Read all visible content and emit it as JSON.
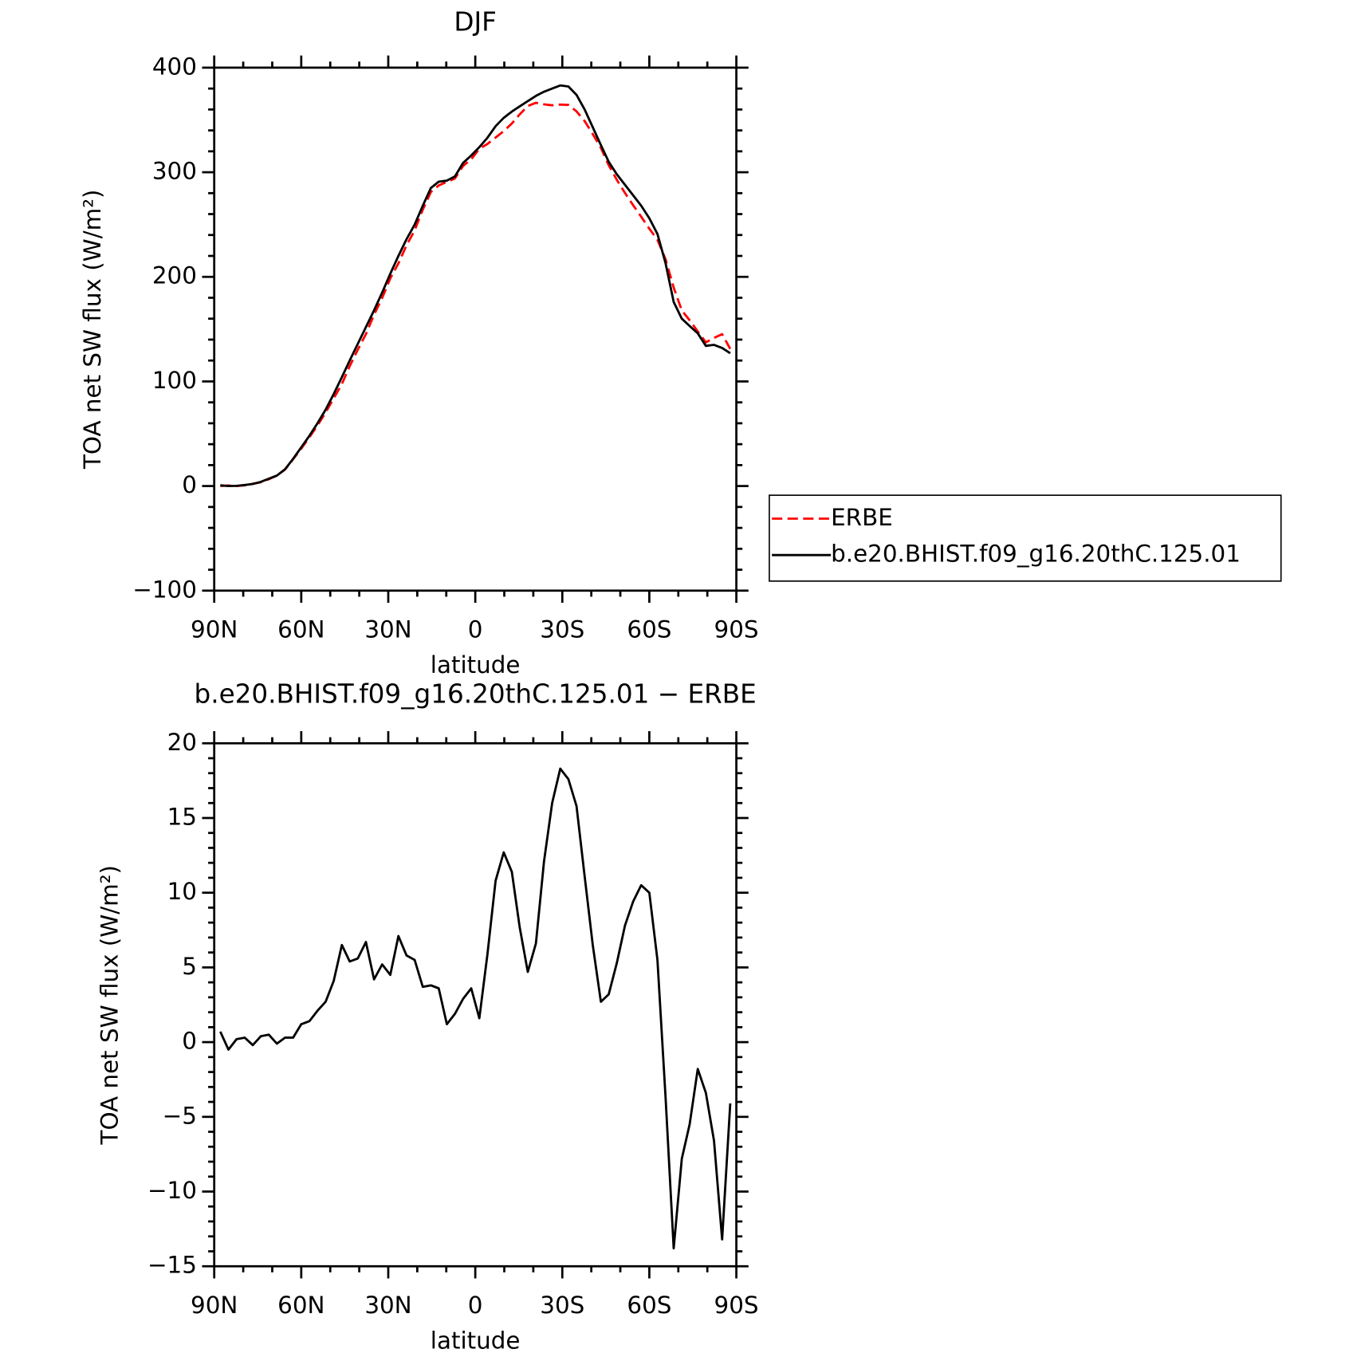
{
  "chart_data": [
    {
      "type": "line",
      "title": "DJF",
      "xlabel": "latitude",
      "ylabel": "TOA net SW flux (W/m²)",
      "x": [
        87.9,
        85.1,
        82.3,
        79.5,
        76.7,
        73.9,
        71.2,
        68.4,
        65.6,
        62.8,
        60.0,
        57.2,
        54.4,
        51.6,
        48.8,
        46.0,
        43.3,
        40.5,
        37.7,
        34.9,
        32.1,
        29.3,
        26.5,
        23.7,
        20.9,
        18.1,
        15.3,
        12.6,
        9.8,
        7.0,
        4.2,
        1.4,
        -1.4,
        -4.2,
        -7.0,
        -9.8,
        -12.6,
        -15.3,
        -18.1,
        -20.9,
        -23.7,
        -26.5,
        -29.3,
        -32.1,
        -34.9,
        -37.7,
        -40.5,
        -43.3,
        -46.0,
        -48.8,
        -51.6,
        -54.4,
        -57.2,
        -60.0,
        -62.8,
        -65.6,
        -68.4,
        -71.2,
        -73.9,
        -76.7,
        -79.5,
        -82.3,
        -85.1,
        -87.9
      ],
      "series": [
        {
          "name": "ERBE",
          "color": "#ff0000",
          "dashed": true,
          "values": [
            0,
            0.5,
            0,
            0.7,
            2.2,
            3.6,
            6.5,
            10.1,
            15.7,
            25.7,
            35.8,
            46.6,
            57.9,
            70.3,
            83.9,
            97.5,
            114.6,
            130.4,
            145.3,
            163.8,
            179.8,
            198.5,
            212.9,
            230.2,
            244.5,
            264.3,
            281.2,
            287.4,
            290.8,
            294.1,
            306.1,
            312.4,
            322.4,
            327.1,
            333.2,
            339.3,
            346.6,
            355.3,
            363.3,
            366.4,
            364.9,
            364,
            364.7,
            364.4,
            358.2,
            348.9,
            336.5,
            323.3,
            306.8,
            292.7,
            280.2,
            268.6,
            257.5,
            246,
            235.5,
            216.7,
            189.8,
            167.8,
            158.5,
            147.8,
            137.4,
            141.6,
            145.2,
            131.1
          ]
        },
        {
          "name": "b.e20.BHIST.f09_g16.20thC.125.01",
          "color": "#000000",
          "dashed": false,
          "values": [
            0.7,
            0,
            0.2,
            1,
            2,
            4,
            7,
            10,
            16,
            26,
            37,
            48,
            60,
            73,
            88,
            104,
            120,
            136,
            152,
            168,
            185,
            203,
            220,
            236,
            250,
            268,
            285,
            291,
            292,
            296,
            309,
            316,
            324,
            333,
            344,
            352,
            358,
            363,
            368,
            373,
            377,
            380,
            383,
            382,
            374,
            360,
            343,
            326,
            310,
            298,
            288,
            278,
            268,
            256,
            241,
            213,
            176,
            160,
            153,
            146,
            134,
            135,
            132,
            127
          ]
        }
      ],
      "xlim": [
        90,
        -90
      ],
      "xticks": [
        {
          "value": 90,
          "label": "90N"
        },
        {
          "value": 60,
          "label": "60N"
        },
        {
          "value": 30,
          "label": "30N"
        },
        0,
        {
          "value": -30,
          "label": "30S"
        },
        {
          "value": -60,
          "label": "60S"
        },
        {
          "value": -90,
          "label": "90S"
        }
      ],
      "ylim": [
        -100,
        400
      ],
      "yticks": [
        {
          "value": -100,
          "label": "−100"
        },
        0,
        100,
        200,
        300,
        400
      ],
      "legend": "outside-right"
    },
    {
      "type": "line",
      "title": "b.e20.BHIST.f09_g16.20thC.125.01 − ERBE",
      "xlabel": "latitude",
      "ylabel": "TOA net SW flux (W/m²)",
      "x": [
        87.9,
        85.1,
        82.3,
        79.5,
        76.7,
        73.9,
        71.2,
        68.4,
        65.6,
        62.8,
        60.0,
        57.2,
        54.4,
        51.6,
        48.8,
        46.0,
        43.3,
        40.5,
        37.7,
        34.9,
        32.1,
        29.3,
        26.5,
        23.7,
        20.9,
        18.1,
        15.3,
        12.6,
        9.8,
        7.0,
        4.2,
        1.4,
        -1.4,
        -4.2,
        -7.0,
        -9.8,
        -12.6,
        -15.3,
        -18.1,
        -20.9,
        -23.7,
        -26.5,
        -29.3,
        -32.1,
        -34.9,
        -37.7,
        -40.5,
        -43.3,
        -46.0,
        -48.8,
        -51.6,
        -54.4,
        -57.2,
        -60.0,
        -62.8,
        -65.6,
        -68.4,
        -71.2,
        -73.9,
        -76.7,
        -79.5,
        -82.3,
        -85.1,
        -87.9
      ],
      "series": [
        {
          "color": "#000000",
          "dashed": false,
          "values": [
            0.7,
            -0.5,
            0.2,
            0.3,
            -0.2,
            0.4,
            0.5,
            -0.1,
            0.3,
            0.3,
            1.2,
            1.4,
            2.1,
            2.7,
            4.1,
            6.5,
            5.4,
            5.6,
            6.7,
            4.2,
            5.2,
            4.5,
            7.1,
            5.8,
            5.5,
            3.7,
            3.8,
            3.6,
            1.2,
            1.9,
            2.9,
            3.6,
            1.6,
            5.9,
            10.8,
            12.7,
            11.4,
            7.7,
            4.7,
            6.6,
            12.1,
            16.0,
            18.3,
            17.6,
            15.8,
            11.1,
            6.5,
            2.7,
            3.2,
            5.3,
            7.8,
            9.4,
            10.5,
            10.0,
            5.5,
            -3.7,
            -13.8,
            -7.8,
            -5.5,
            -1.8,
            -3.4,
            -6.6,
            -13.2,
            -4.1
          ]
        }
      ],
      "xlim": [
        90,
        -90
      ],
      "xticks": [
        {
          "value": 90,
          "label": "90N"
        },
        {
          "value": 60,
          "label": "60N"
        },
        {
          "value": 30,
          "label": "30N"
        },
        0,
        {
          "value": -30,
          "label": "30S"
        },
        {
          "value": -60,
          "label": "60S"
        },
        {
          "value": -90,
          "label": "90S"
        }
      ],
      "ylim": [
        -15,
        20
      ],
      "yticks": [
        {
          "value": -15,
          "label": "−15"
        },
        {
          "value": -10,
          "label": "−10"
        },
        {
          "value": -5,
          "label": "−5"
        },
        0,
        5,
        10,
        15,
        20
      ]
    }
  ]
}
